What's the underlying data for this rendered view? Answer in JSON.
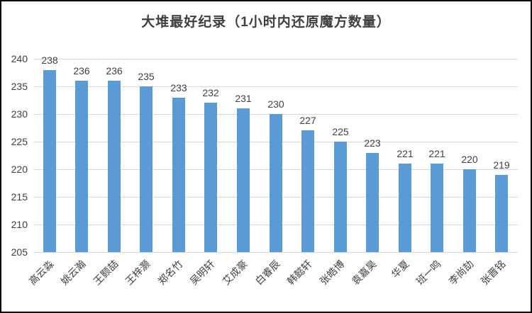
{
  "title": "大堆最好纪录（1小时内还原魔方数量）",
  "chart_data": {
    "type": "bar",
    "title": "大堆最好纪录（1小时内还原魔方数量）",
    "categories": [
      "高云淼",
      "姚云瀚",
      "王颢喆",
      "王梓灏",
      "郑名竹",
      "吴明轩",
      "艾成豪",
      "白睿辰",
      "韩懿轩",
      "张皓博",
      "袁嘉昊",
      "华夏",
      "班一鸣",
      "李尚劼",
      "张晋铭"
    ],
    "values": [
      238,
      236,
      236,
      235,
      233,
      232,
      231,
      230,
      227,
      225,
      223,
      221,
      221,
      220,
      219
    ],
    "data_labels": [
      "238",
      "236",
      "236",
      "235",
      "233",
      "232",
      "231",
      "230",
      "227",
      "225",
      "223",
      "221",
      "221",
      "220",
      "219"
    ],
    "xlabel": "",
    "ylabel": "",
    "ylim": [
      205,
      240
    ],
    "yticks": [
      240,
      235,
      230,
      225,
      220,
      215,
      210,
      205
    ],
    "grid": true,
    "legend": "none",
    "bar_color": "#5b9bd5",
    "gridline_color": "#d9d9d9",
    "text_color": "#404040",
    "title_color": "#3f3f3f"
  }
}
